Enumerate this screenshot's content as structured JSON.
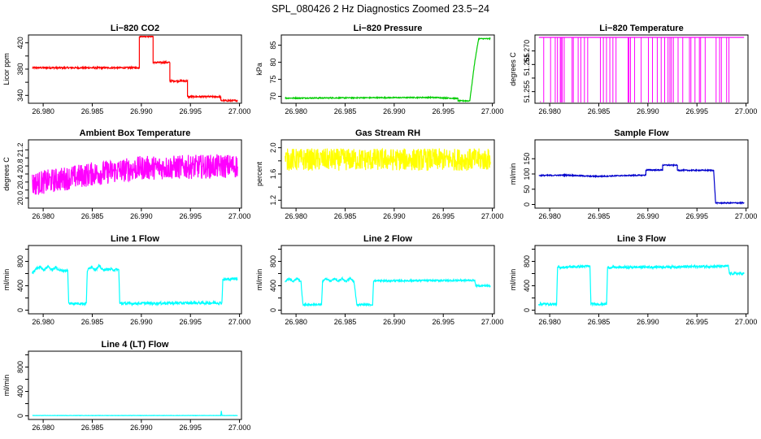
{
  "title": "SPL_080426  2 Hz Diagnostics Zoomed 23.5−24",
  "chart_data": [
    {
      "type": "line",
      "title": "Li−820 CO2",
      "ylabel": "Licor ppm",
      "color": "#ff0000",
      "xlim": [
        26.9785,
        27.0002
      ],
      "ylim": [
        328,
        432
      ],
      "xticks": [
        "26.980",
        "26.985",
        "26.990",
        "26.995",
        "27.000"
      ],
      "xtick_values": [
        26.98,
        26.985,
        26.99,
        26.995,
        27.0
      ],
      "yticks": [
        "340",
        "380",
        "420"
      ],
      "ytick_values": [
        340,
        360,
        380,
        400,
        420
      ],
      "ytick_labels_at": [
        340,
        380,
        420
      ],
      "points": [
        [
          26.9789,
          382
        ],
        [
          26.9898,
          382
        ],
        [
          26.9898,
          430
        ],
        [
          26.9912,
          430
        ],
        [
          26.9912,
          390
        ],
        [
          26.9929,
          390
        ],
        [
          26.9929,
          362
        ],
        [
          26.9947,
          362
        ],
        [
          26.9947,
          338
        ],
        [
          26.9981,
          338
        ],
        [
          26.9981,
          332
        ],
        [
          26.9998,
          332
        ]
      ],
      "noise": 1.2
    },
    {
      "type": "line",
      "title": "Li−820 Pressure",
      "ylabel": "kPa",
      "color": "#00cc00",
      "xlim": [
        26.9785,
        27.0002
      ],
      "ylim": [
        68,
        88
      ],
      "xticks": [
        "26.980",
        "26.985",
        "26.990",
        "26.995",
        "27.000"
      ],
      "xtick_values": [
        26.98,
        26.985,
        26.99,
        26.995,
        27.0
      ],
      "yticks": [
        "70",
        "75",
        "80",
        "85"
      ],
      "ytick_values": [
        70,
        75,
        80,
        85
      ],
      "ytick_labels_at": [
        70,
        75,
        80,
        85
      ],
      "points": [
        [
          26.9789,
          69.5
        ],
        [
          26.994,
          69.7
        ],
        [
          26.9965,
          69.4
        ],
        [
          26.9965,
          68.7
        ],
        [
          26.9977,
          68.7
        ],
        [
          26.9982,
          80
        ],
        [
          26.9986,
          86.9
        ],
        [
          26.9998,
          86.9
        ]
      ],
      "noise": 0.15
    },
    {
      "type": "line",
      "title": "Li−820 Temperature",
      "ylabel": "degrees C",
      "color": "#ff00ff",
      "xlim": [
        26.9785,
        27.0002
      ],
      "ylim": [
        51.2507,
        51.2759
      ],
      "xticks": [
        "26.980",
        "26.985",
        "26.990",
        "26.995",
        "27.000"
      ],
      "xtick_values": [
        26.98,
        26.985,
        26.99,
        26.995,
        27.0
      ],
      "yticks": [
        "51.255",
        "51.265",
        "51.270"
      ],
      "ytick_values": [
        51.255,
        51.26,
        51.265,
        51.27
      ],
      "ytick_labels_at": [
        51.255,
        51.265,
        51.27
      ],
      "points": [
        [
          26.9789,
          51.275
        ],
        [
          26.9998,
          51.275
        ]
      ],
      "noise": 0
    },
    {
      "type": "line",
      "title": "Ambient Box Temperature",
      "ylabel": "degrees C",
      "color": "#ff00ff",
      "xlim": [
        26.9785,
        27.0002
      ],
      "ylim": [
        19.75,
        21.45
      ],
      "xticks": [
        "26.980",
        "26.985",
        "26.990",
        "26.995",
        "27.000"
      ],
      "xtick_values": [
        26.98,
        26.985,
        26.99,
        26.995,
        27.0
      ],
      "yticks": [
        "20.0",
        "20.4",
        "20.8",
        "21.2"
      ],
      "ytick_values": [
        20.0,
        20.2,
        20.4,
        20.6,
        20.8,
        21.0,
        21.2
      ],
      "ytick_labels_at": [
        20.0,
        20.4,
        20.8,
        21.2
      ],
      "points": [
        [
          26.9789,
          20.35
        ],
        [
          26.985,
          20.6
        ],
        [
          26.99,
          20.75
        ],
        [
          26.9998,
          20.8
        ]
      ],
      "noise": 0.3
    },
    {
      "type": "line",
      "title": "Gas Stream RH",
      "ylabel": "percent",
      "color": "#ffff00",
      "xlim": [
        26.9785,
        27.0002
      ],
      "ylim": [
        1.08,
        2.12
      ],
      "xticks": [
        "26.980",
        "26.985",
        "26.990",
        "26.995",
        "27.000"
      ],
      "xtick_values": [
        26.98,
        26.985,
        26.99,
        26.995,
        27.0
      ],
      "yticks": [
        "1.2",
        "1.6",
        "2.0"
      ],
      "ytick_values": [
        1.2,
        1.4,
        1.6,
        1.8,
        2.0
      ],
      "ytick_labels_at": [
        1.2,
        1.6,
        2.0
      ],
      "points": [
        [
          26.9789,
          1.82
        ],
        [
          26.9998,
          1.82
        ]
      ],
      "noise": 0.17
    },
    {
      "type": "line",
      "title": "Sample Flow",
      "ylabel": "ml/min",
      "color": "#0000cc",
      "xlim": [
        26.9785,
        27.0002
      ],
      "ylim": [
        -12,
        212
      ],
      "xticks": [
        "26.980",
        "26.985",
        "26.990",
        "26.995",
        "27.000"
      ],
      "xtick_values": [
        26.98,
        26.985,
        26.99,
        26.995,
        27.0
      ],
      "yticks": [
        "0",
        "50",
        "100",
        "150"
      ],
      "ytick_values": [
        0,
        50,
        100,
        150
      ],
      "ytick_labels_at": [
        0,
        50,
        100,
        150
      ],
      "points": [
        [
          26.9789,
          95
        ],
        [
          26.9817,
          96
        ],
        [
          26.9848,
          92
        ],
        [
          26.9878,
          95
        ],
        [
          26.9898,
          96
        ],
        [
          26.9898,
          113
        ],
        [
          26.9915,
          113
        ],
        [
          26.9915,
          129
        ],
        [
          26.993,
          129
        ],
        [
          26.993,
          112
        ],
        [
          26.9967,
          112
        ],
        [
          26.9969,
          5
        ],
        [
          26.9998,
          5
        ]
      ],
      "noise": 1.8
    },
    {
      "type": "line",
      "title": "Line 1 Flow",
      "ylabel": "ml/min",
      "color": "#00ffff",
      "xlim": [
        26.9785,
        27.0002
      ],
      "ylim": [
        -60,
        1060
      ],
      "xticks": [
        "26.980",
        "26.985",
        "26.990",
        "26.995",
        "27.000"
      ],
      "xtick_values": [
        26.98,
        26.985,
        26.99,
        26.995,
        27.0
      ],
      "yticks": [
        "0",
        "400",
        "800"
      ],
      "ytick_values": [
        0,
        200,
        400,
        600,
        800,
        1000
      ],
      "ytick_labels_at": [
        0,
        400,
        800
      ],
      "points": [
        [
          26.9789,
          120
        ],
        [
          26.9789,
          600
        ],
        [
          26.9793,
          680
        ],
        [
          26.9797,
          710
        ],
        [
          26.9801,
          660
        ],
        [
          26.9805,
          720
        ],
        [
          26.9809,
          660
        ],
        [
          26.9813,
          700
        ],
        [
          26.9817,
          650
        ],
        [
          26.9825,
          650
        ],
        [
          26.9826,
          110
        ],
        [
          26.9844,
          110
        ],
        [
          26.9845,
          650
        ],
        [
          26.9849,
          720
        ],
        [
          26.9853,
          660
        ],
        [
          26.9857,
          720
        ],
        [
          26.9861,
          660
        ],
        [
          26.9866,
          670
        ],
        [
          26.9877,
          660
        ],
        [
          26.9878,
          110
        ],
        [
          26.9982,
          120
        ],
        [
          26.9983,
          500
        ],
        [
          26.9998,
          520
        ]
      ],
      "noise": 22
    },
    {
      "type": "line",
      "title": "Line 2 Flow",
      "ylabel": "ml/min",
      "color": "#00ffff",
      "xlim": [
        26.9785,
        27.0002
      ],
      "ylim": [
        -60,
        1060
      ],
      "xticks": [
        "26.980",
        "26.985",
        "26.990",
        "26.995",
        "27.000"
      ],
      "xtick_values": [
        26.98,
        26.985,
        26.99,
        26.995,
        27.0
      ],
      "yticks": [
        "0",
        "400",
        "800"
      ],
      "ytick_values": [
        0,
        200,
        400,
        600,
        800,
        1000
      ],
      "ytick_labels_at": [
        0,
        400,
        800
      ],
      "points": [
        [
          26.9789,
          470
        ],
        [
          26.9793,
          520
        ],
        [
          26.9797,
          470
        ],
        [
          26.9801,
          520
        ],
        [
          26.9805,
          470
        ],
        [
          26.9807,
          90
        ],
        [
          26.9826,
          90
        ],
        [
          26.9827,
          470
        ],
        [
          26.9831,
          520
        ],
        [
          26.9835,
          470
        ],
        [
          26.9839,
          520
        ],
        [
          26.9843,
          470
        ],
        [
          26.9847,
          520
        ],
        [
          26.9851,
          470
        ],
        [
          26.9855,
          520
        ],
        [
          26.9859,
          470
        ],
        [
          26.9862,
          90
        ],
        [
          26.9878,
          90
        ],
        [
          26.9879,
          480
        ],
        [
          26.9982,
          490
        ],
        [
          26.9983,
          400
        ],
        [
          26.9998,
          400
        ]
      ],
      "noise": 14
    },
    {
      "type": "line",
      "title": "Line 3 Flow",
      "ylabel": "ml/min",
      "color": "#00ffff",
      "xlim": [
        26.9785,
        27.0002
      ],
      "ylim": [
        -60,
        1060
      ],
      "xticks": [
        "26.980",
        "26.985",
        "26.990",
        "26.995",
        "27.000"
      ],
      "xtick_values": [
        26.98,
        26.985,
        26.99,
        26.995,
        27.0
      ],
      "yticks": [
        "0",
        "400",
        "800"
      ],
      "ytick_values": [
        0,
        200,
        400,
        600,
        800,
        1000
      ],
      "ytick_labels_at": [
        0,
        400,
        800
      ],
      "points": [
        [
          26.9789,
          640
        ],
        [
          26.9789,
          100
        ],
        [
          26.9807,
          100
        ],
        [
          26.9808,
          700
        ],
        [
          26.9841,
          720
        ],
        [
          26.9842,
          100
        ],
        [
          26.9858,
          100
        ],
        [
          26.9859,
          700
        ],
        [
          26.9982,
          720
        ],
        [
          26.9983,
          600
        ],
        [
          26.9998,
          600
        ]
      ],
      "noise": 20
    },
    {
      "type": "line",
      "title": "Line 4 (LT) Flow",
      "ylabel": "ml/min",
      "color": "#00ffff",
      "xlim": [
        26.9785,
        27.0002
      ],
      "ylim": [
        -60,
        1060
      ],
      "xticks": [
        "26.980",
        "26.985",
        "26.990",
        "26.995",
        "27.000"
      ],
      "xtick_values": [
        26.98,
        26.985,
        26.99,
        26.995,
        27.0
      ],
      "yticks": [
        "0",
        "400",
        "800"
      ],
      "ytick_values": [
        0,
        200,
        400,
        600,
        800,
        1000
      ],
      "ytick_labels_at": [
        0,
        400,
        800
      ],
      "points": [
        [
          26.9789,
          5
        ],
        [
          26.9981,
          5
        ],
        [
          26.99815,
          80
        ],
        [
          26.9982,
          5
        ],
        [
          26.9998,
          5
        ]
      ],
      "noise": 2
    }
  ]
}
